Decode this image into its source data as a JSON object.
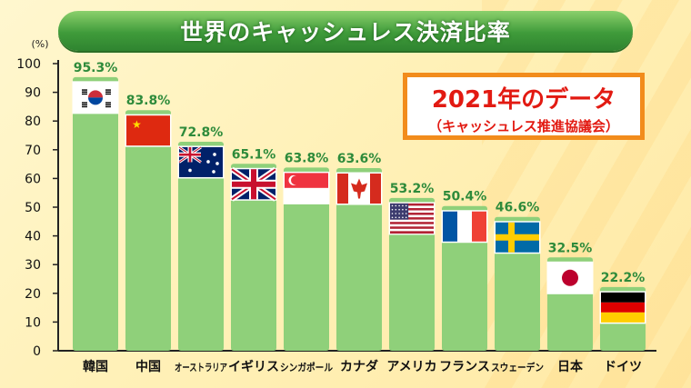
{
  "title": "世界のキャッシュレス決済比率",
  "badge": {
    "main": "2021年のデータ",
    "sub": "（キャッシュレス推進協議会）"
  },
  "colors": {
    "bar": "#8fd07a",
    "value_label": "#2e8b3b",
    "title_bar": "#3f9b3a",
    "badge_border": "#f28c1c",
    "badge_text": "#e21a12"
  },
  "chart_data": {
    "type": "bar",
    "title": "世界のキャッシュレス決済比率",
    "ylabel": "(%)",
    "ylim": [
      0,
      100
    ],
    "yticks": [
      0,
      10,
      20,
      30,
      40,
      50,
      60,
      70,
      80,
      90,
      100
    ],
    "categories": [
      "韓国",
      "中国",
      "オーストラリア",
      "イギリス",
      "シンガポール",
      "カナダ",
      "アメリカ",
      "フランス",
      "スウェーデン",
      "日本",
      "ドイツ"
    ],
    "values": [
      95.3,
      83.8,
      72.8,
      65.1,
      63.8,
      63.6,
      53.2,
      50.4,
      46.6,
      32.5,
      22.2
    ],
    "value_labels": [
      "95.3%",
      "83.8%",
      "72.8%",
      "65.1%",
      "63.8%",
      "63.6%",
      "53.2%",
      "50.4%",
      "46.6%",
      "32.5%",
      "22.2%"
    ],
    "flags": [
      "south-korea-flag",
      "china-flag",
      "australia-flag",
      "uk-flag",
      "singapore-flag",
      "canada-flag",
      "usa-flag",
      "france-flag",
      "sweden-flag",
      "japan-flag",
      "germany-flag"
    ],
    "grid": false,
    "legend": "none"
  }
}
